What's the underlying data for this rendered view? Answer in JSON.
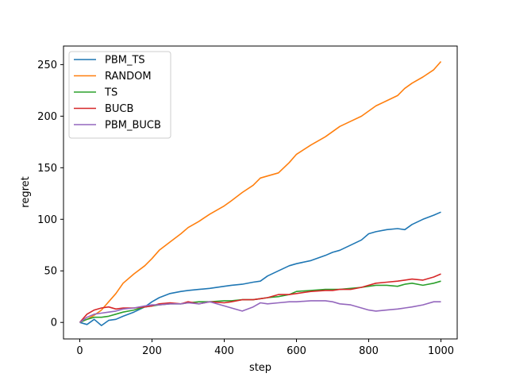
{
  "chart_data": {
    "type": "line",
    "title": "",
    "xlabel": "step",
    "ylabel": "regret",
    "xlim": [
      -45,
      1045
    ],
    "ylim": [
      -16,
      268
    ],
    "xticks": [
      0,
      200,
      400,
      600,
      800,
      1000
    ],
    "yticks": [
      0,
      50,
      100,
      150,
      200,
      250
    ],
    "grid": false,
    "legend_position": "top-left",
    "series": [
      {
        "name": "PBM_TS",
        "color": "#1f77b4",
        "x": [
          0,
          20,
          40,
          60,
          80,
          100,
          120,
          150,
          180,
          200,
          220,
          250,
          280,
          300,
          330,
          360,
          400,
          420,
          450,
          480,
          500,
          520,
          550,
          580,
          600,
          640,
          680,
          700,
          720,
          750,
          780,
          800,
          820,
          850,
          880,
          900,
          920,
          950,
          980,
          1000
        ],
        "y": [
          0,
          -2,
          3,
          -3,
          2,
          3,
          6,
          10,
          15,
          20,
          24,
          28,
          30,
          31,
          32,
          33,
          35,
          36,
          37,
          39,
          40,
          45,
          50,
          55,
          57,
          60,
          65,
          68,
          70,
          75,
          80,
          86,
          88,
          90,
          91,
          90,
          95,
          100,
          104,
          107
        ]
      },
      {
        "name": "RANDOM",
        "color": "#ff7f0e",
        "x": [
          0,
          20,
          40,
          60,
          80,
          100,
          120,
          150,
          180,
          200,
          220,
          250,
          280,
          300,
          330,
          360,
          400,
          420,
          450,
          480,
          500,
          520,
          550,
          580,
          600,
          640,
          680,
          700,
          720,
          750,
          780,
          800,
          820,
          850,
          880,
          900,
          920,
          950,
          980,
          1000
        ],
        "y": [
          0,
          3,
          7,
          12,
          20,
          28,
          38,
          47,
          55,
          62,
          70,
          78,
          86,
          92,
          98,
          105,
          113,
          118,
          126,
          133,
          140,
          142,
          145,
          155,
          163,
          172,
          180,
          185,
          190,
          195,
          200,
          205,
          210,
          215,
          220,
          227,
          232,
          238,
          245,
          253
        ]
      },
      {
        "name": "TS",
        "color": "#2ca02c",
        "x": [
          0,
          20,
          40,
          60,
          80,
          100,
          120,
          150,
          180,
          200,
          220,
          250,
          280,
          300,
          330,
          360,
          400,
          420,
          450,
          480,
          500,
          520,
          550,
          580,
          600,
          640,
          680,
          700,
          720,
          750,
          780,
          800,
          820,
          850,
          880,
          900,
          920,
          950,
          980,
          1000
        ],
        "y": [
          0,
          3,
          5,
          5,
          6,
          8,
          10,
          12,
          15,
          16,
          17,
          18,
          18,
          19,
          20,
          20,
          21,
          21,
          22,
          22,
          23,
          24,
          25,
          27,
          30,
          31,
          32,
          32,
          32,
          33,
          34,
          35,
          36,
          36,
          35,
          37,
          38,
          36,
          38,
          40
        ]
      },
      {
        "name": "BUCB",
        "color": "#d62728",
        "x": [
          0,
          20,
          40,
          60,
          80,
          100,
          120,
          150,
          180,
          200,
          220,
          250,
          280,
          300,
          330,
          360,
          400,
          420,
          450,
          480,
          500,
          520,
          550,
          580,
          600,
          640,
          680,
          700,
          720,
          750,
          780,
          800,
          820,
          850,
          880,
          900,
          920,
          950,
          980,
          1000
        ],
        "y": [
          0,
          8,
          12,
          14,
          15,
          13,
          14,
          14,
          15,
          16,
          18,
          19,
          18,
          20,
          18,
          20,
          19,
          20,
          22,
          22,
          23,
          24,
          27,
          27,
          28,
          30,
          31,
          31,
          32,
          32,
          34,
          36,
          38,
          39,
          40,
          41,
          42,
          41,
          44,
          47
        ]
      },
      {
        "name": "PBM_BUCB",
        "color": "#9467bd",
        "x": [
          0,
          20,
          40,
          60,
          80,
          100,
          120,
          150,
          180,
          200,
          220,
          250,
          280,
          300,
          330,
          360,
          400,
          420,
          450,
          480,
          500,
          520,
          550,
          580,
          600,
          640,
          680,
          700,
          720,
          750,
          780,
          800,
          820,
          850,
          880,
          900,
          920,
          950,
          980,
          1000
        ],
        "y": [
          0,
          5,
          8,
          9,
          10,
          11,
          13,
          14,
          16,
          17,
          17,
          18,
          18,
          19,
          18,
          20,
          16,
          14,
          11,
          15,
          19,
          18,
          19,
          20,
          20,
          21,
          21,
          20,
          18,
          17,
          14,
          12,
          11,
          12,
          13,
          14,
          15,
          17,
          20,
          20
        ]
      }
    ]
  }
}
